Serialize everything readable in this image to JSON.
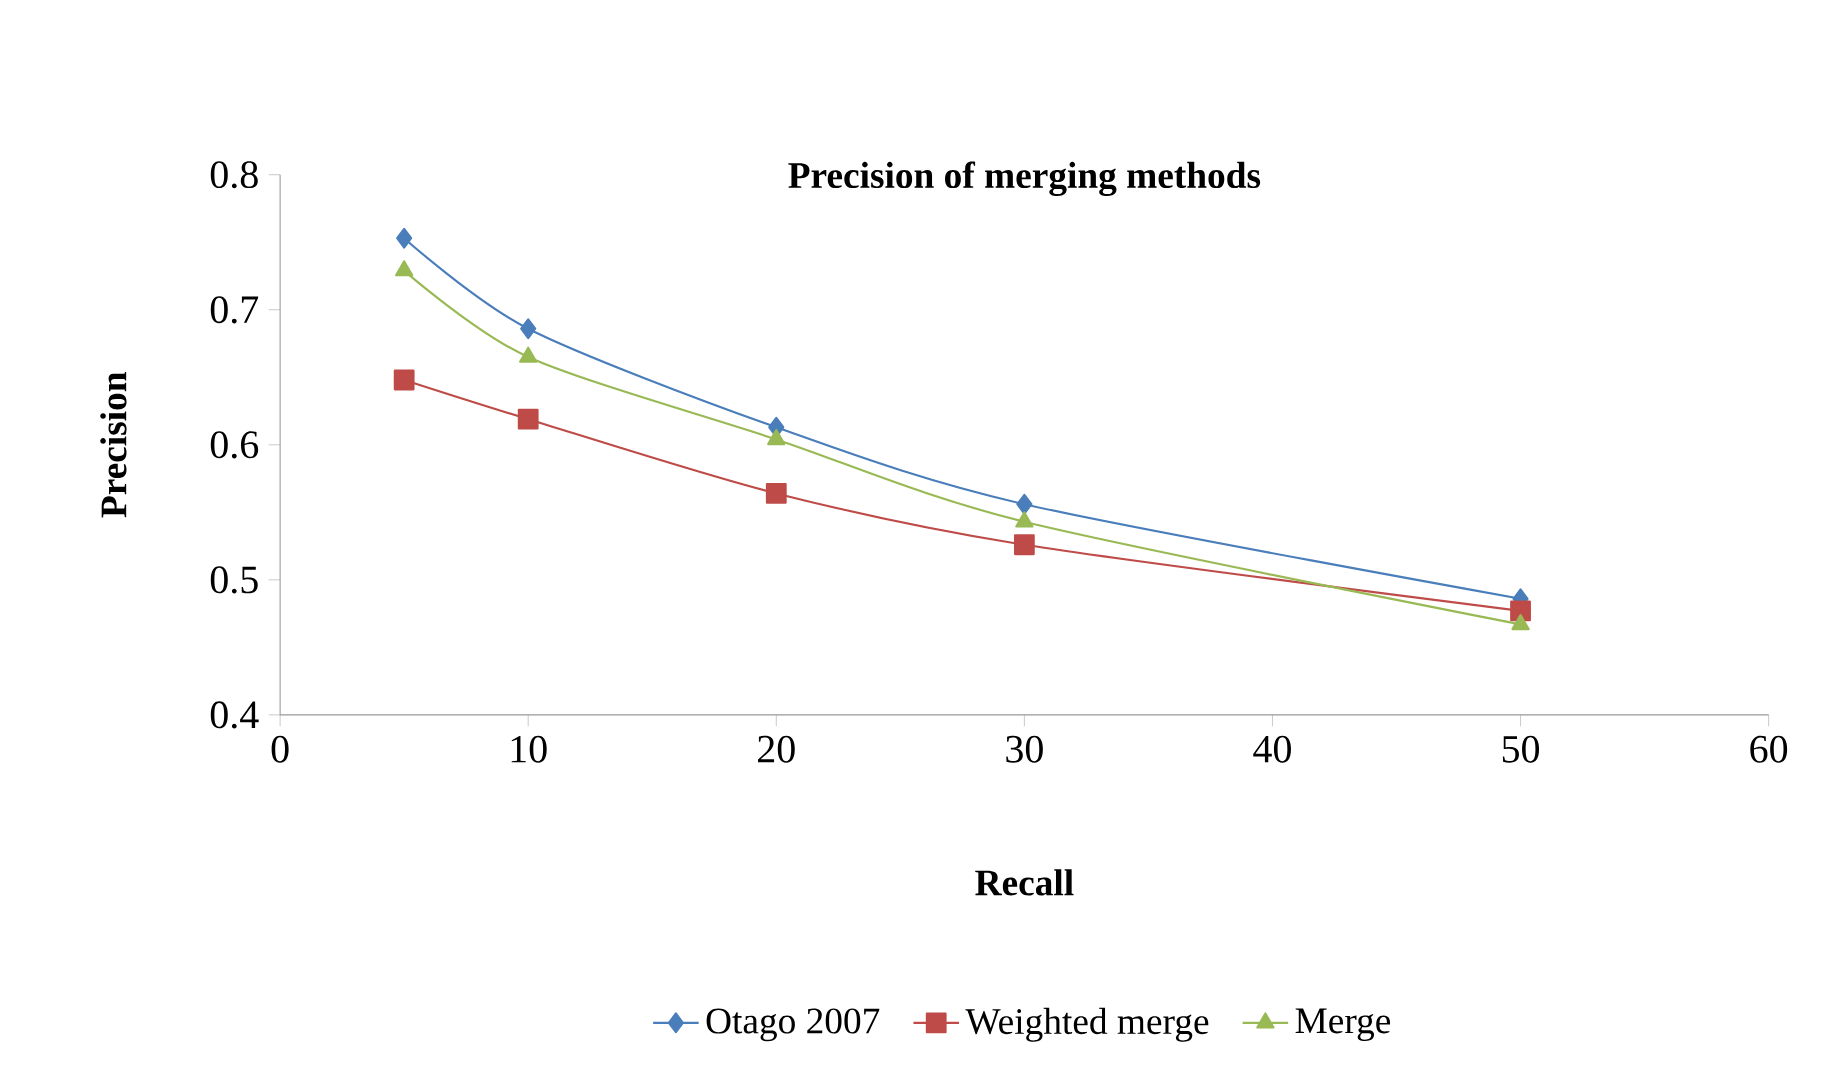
{
  "chart_data": {
    "type": "line",
    "title": "Precision of merging methods",
    "xlabel": "Recall",
    "ylabel": "Precision",
    "x": [
      5,
      10,
      20,
      30,
      50
    ],
    "series": [
      {
        "name": "Otago 2007",
        "color": "#4a7ebb",
        "marker": "diamond",
        "values": [
          0.753,
          0.686,
          0.613,
          0.556,
          0.486
        ]
      },
      {
        "name": "Weighted merge",
        "color": "#be4b48",
        "marker": "square",
        "values": [
          0.648,
          0.619,
          0.564,
          0.526,
          0.477
        ]
      },
      {
        "name": "Merge",
        "color": "#98b954",
        "marker": "triangle",
        "values": [
          0.729,
          0.665,
          0.604,
          0.543,
          0.467
        ]
      }
    ],
    "xlim": [
      0,
      60
    ],
    "ylim": [
      0.4,
      0.8
    ],
    "xticks": [
      0,
      10,
      20,
      30,
      40,
      50,
      60
    ],
    "yticks": [
      0.4,
      0.5,
      0.6,
      0.7,
      0.8
    ],
    "grid": false,
    "legend": "bottom",
    "line_style": "solid"
  }
}
